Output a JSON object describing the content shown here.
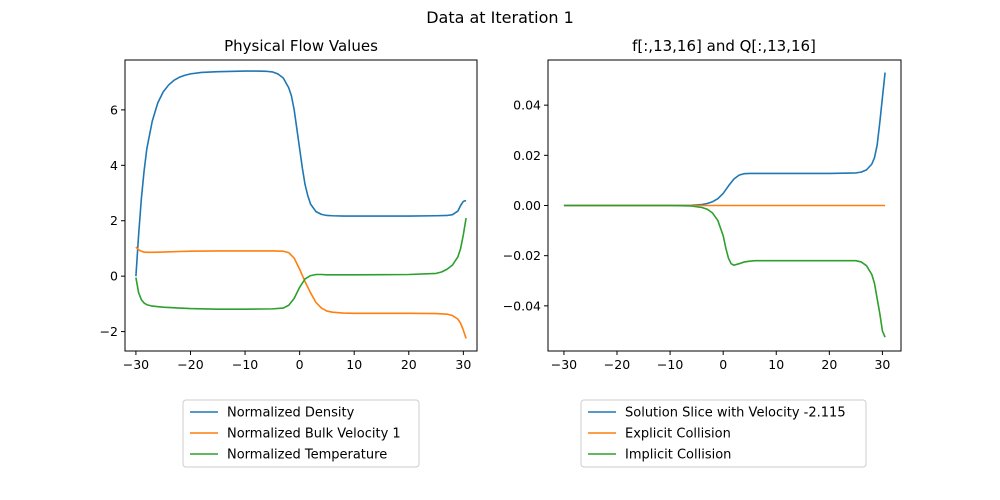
{
  "figure": {
    "suptitle": "Data at Iteration 1"
  },
  "chart_data": [
    {
      "type": "line",
      "title": "Physical Flow Values",
      "xlabel": "",
      "ylabel": "",
      "xlim": [
        -32,
        32.5
      ],
      "ylim": [
        -2.7,
        7.8
      ],
      "xticks": [
        -30,
        -20,
        -10,
        0,
        10,
        20,
        30
      ],
      "yticks": [
        -2,
        0,
        2,
        4,
        6
      ],
      "ytick_labels": [
        "−2",
        "0",
        "2",
        "4",
        "6"
      ],
      "xtick_labels": [
        "−30",
        "−20",
        "−10",
        "0",
        "10",
        "20",
        "30"
      ],
      "grid": false,
      "legend_position": "below",
      "series": [
        {
          "name": "Normalized Density",
          "color": "#1f77b4",
          "x": [
            -30,
            -29.5,
            -29,
            -28.5,
            -28,
            -27,
            -26,
            -25,
            -24,
            -23,
            -22,
            -21,
            -20,
            -18,
            -15,
            -12,
            -10,
            -8,
            -6,
            -5,
            -4,
            -3,
            -2,
            -1.5,
            -1,
            -0.5,
            0,
            0.5,
            1,
            1.5,
            2,
            3,
            4,
            5,
            6,
            8,
            10,
            15,
            20,
            25,
            27,
            28,
            29,
            29.5,
            30,
            30.5
          ],
          "y": [
            0.0,
            1.5,
            2.8,
            3.8,
            4.6,
            5.6,
            6.25,
            6.65,
            6.9,
            7.07,
            7.18,
            7.25,
            7.3,
            7.35,
            7.38,
            7.39,
            7.4,
            7.4,
            7.39,
            7.37,
            7.3,
            7.15,
            6.8,
            6.5,
            6.0,
            5.3,
            4.6,
            3.9,
            3.3,
            2.9,
            2.6,
            2.33,
            2.23,
            2.19,
            2.18,
            2.17,
            2.17,
            2.17,
            2.17,
            2.18,
            2.19,
            2.22,
            2.35,
            2.55,
            2.7,
            2.73
          ]
        },
        {
          "name": "Normalized Bulk Velocity 1",
          "color": "#ff7f0e",
          "x": [
            -30,
            -29.5,
            -29,
            -28.5,
            -28,
            -27,
            -25,
            -22,
            -20,
            -15,
            -10,
            -5,
            -3,
            -2,
            -1,
            0,
            1,
            2,
            3,
            4,
            5,
            6,
            8,
            10,
            20,
            25,
            27,
            28,
            29,
            29.5,
            30,
            30.5
          ],
          "y": [
            1.05,
            0.95,
            0.9,
            0.87,
            0.86,
            0.86,
            0.87,
            0.89,
            0.9,
            0.91,
            0.91,
            0.91,
            0.9,
            0.85,
            0.65,
            0.25,
            -0.2,
            -0.6,
            -0.95,
            -1.15,
            -1.26,
            -1.3,
            -1.33,
            -1.34,
            -1.34,
            -1.35,
            -1.37,
            -1.42,
            -1.55,
            -1.7,
            -1.95,
            -2.25
          ]
        },
        {
          "name": "Normalized Temperature",
          "color": "#2ca02c",
          "x": [
            -30,
            -29.5,
            -29,
            -28.5,
            -28,
            -27,
            -25,
            -22,
            -20,
            -15,
            -10,
            -5,
            -3,
            -2,
            -1,
            0,
            1,
            2,
            3,
            4,
            5,
            8,
            10,
            20,
            25,
            26,
            27,
            28,
            29,
            29.5,
            30,
            30.5
          ],
          "y": [
            -0.05,
            -0.6,
            -0.85,
            -0.97,
            -1.03,
            -1.08,
            -1.12,
            -1.15,
            -1.17,
            -1.19,
            -1.19,
            -1.18,
            -1.15,
            -1.05,
            -0.8,
            -0.4,
            -0.1,
            0.02,
            0.06,
            0.06,
            0.05,
            0.05,
            0.05,
            0.06,
            0.1,
            0.15,
            0.25,
            0.4,
            0.7,
            1.0,
            1.5,
            2.1
          ]
        }
      ]
    },
    {
      "type": "line",
      "title": "f[:,13,16] and Q[:,13,16]",
      "xlabel": "",
      "ylabel": "",
      "xlim": [
        -33,
        33.5
      ],
      "ylim": [
        -0.058,
        0.058
      ],
      "xticks": [
        -30,
        -20,
        -10,
        0,
        10,
        20,
        30
      ],
      "yticks": [
        -0.04,
        -0.02,
        0.0,
        0.02,
        0.04
      ],
      "ytick_labels": [
        "−0.04",
        "−0.02",
        "0.00",
        "0.02",
        "0.04"
      ],
      "xtick_labels": [
        "−30",
        "−20",
        "−10",
        "0",
        "10",
        "20",
        "30"
      ],
      "grid": false,
      "legend_position": "below",
      "series": [
        {
          "name": "Solution Slice with Velocity -2.115",
          "color": "#1f77b4",
          "x": [
            -30,
            -20,
            -10,
            -6,
            -4,
            -3,
            -2,
            -1,
            0,
            1,
            2,
            3,
            4,
            5,
            6,
            8,
            10,
            20,
            25,
            26,
            27,
            28,
            28.5,
            29,
            29.5,
            30,
            30.5
          ],
          "y": [
            0.0,
            0.0,
            0.0,
            0.0001,
            0.0004,
            0.0008,
            0.0015,
            0.0027,
            0.0048,
            0.0078,
            0.0105,
            0.0121,
            0.0127,
            0.0128,
            0.0128,
            0.0128,
            0.0128,
            0.0128,
            0.013,
            0.0133,
            0.0142,
            0.0165,
            0.019,
            0.024,
            0.033,
            0.043,
            0.053
          ]
        },
        {
          "name": "Explicit Collision",
          "color": "#ff7f0e",
          "x": [
            -30,
            30.5
          ],
          "y": [
            0.0,
            0.0
          ]
        },
        {
          "name": "Implicit Collision",
          "color": "#2ca02c",
          "x": [
            -30,
            -20,
            -10,
            -6,
            -4,
            -3,
            -2,
            -1,
            0,
            0.5,
            1,
            1.5,
            2,
            3,
            4,
            5,
            6,
            10,
            20,
            25,
            26,
            27,
            28,
            28.5,
            29,
            29.5,
            30,
            30.5
          ],
          "y": [
            0.0,
            0.0,
            0.0,
            -0.0002,
            -0.0008,
            -0.0015,
            -0.003,
            -0.006,
            -0.012,
            -0.017,
            -0.021,
            -0.0232,
            -0.0238,
            -0.0232,
            -0.0225,
            -0.0222,
            -0.022,
            -0.022,
            -0.022,
            -0.022,
            -0.0225,
            -0.024,
            -0.0275,
            -0.031,
            -0.037,
            -0.043,
            -0.05,
            -0.0525
          ]
        }
      ]
    }
  ]
}
